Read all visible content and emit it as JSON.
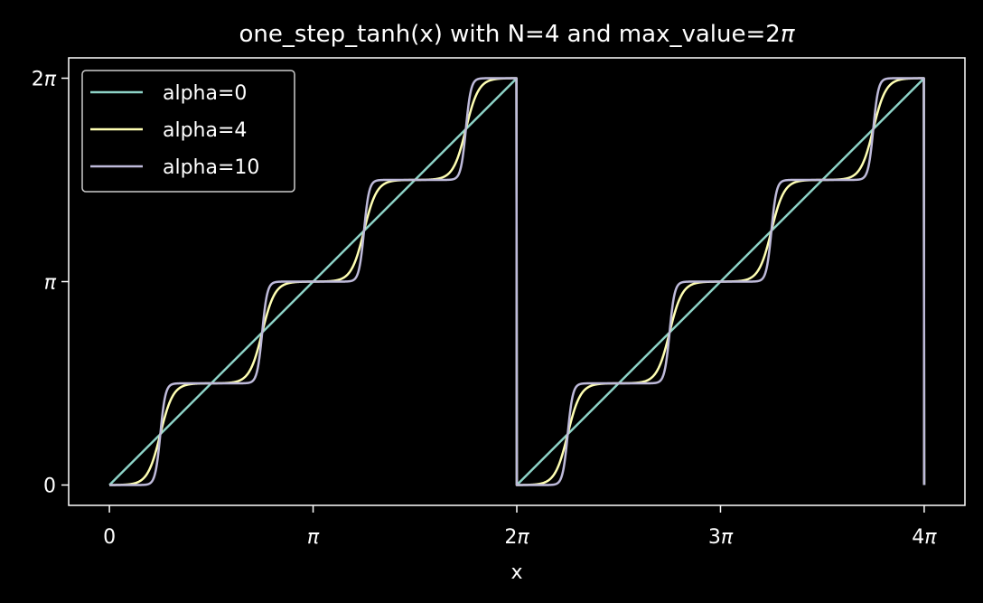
{
  "chart_data": {
    "type": "line",
    "title": "one_step_tanh(x) with N=4 and max_value=2π",
    "xlabel": "x",
    "ylabel": "",
    "xlim": [
      -0.2,
      4.2
    ],
    "ylim": [
      -0.1,
      2.1
    ],
    "xunit": "π",
    "yunit": "π",
    "x_range": [
      0,
      4
    ],
    "N": 4,
    "period": 2,
    "xticks": [
      {
        "value": 0,
        "coef": "0",
        "pi": ""
      },
      {
        "value": 1,
        "coef": "",
        "pi": "π"
      },
      {
        "value": 2,
        "coef": "2",
        "pi": "π"
      },
      {
        "value": 3,
        "coef": "3",
        "pi": "π"
      },
      {
        "value": 4,
        "coef": "4",
        "pi": "π"
      }
    ],
    "yticks": [
      {
        "value": 0,
        "coef": "0",
        "pi": ""
      },
      {
        "value": 1,
        "coef": "",
        "pi": "π"
      },
      {
        "value": 2,
        "coef": "2",
        "pi": "π"
      }
    ],
    "series": [
      {
        "name": "alpha=0",
        "alpha": 0,
        "color": "#8dd3c7"
      },
      {
        "name": "alpha=4",
        "alpha": 4,
        "color": "#ffffb3"
      },
      {
        "name": "alpha=10",
        "alpha": 10,
        "color": "#bebada"
      }
    ],
    "legend_position": "top-left",
    "grid": false
  },
  "colors": {
    "background": "#000000",
    "foreground": "#ffffff"
  }
}
